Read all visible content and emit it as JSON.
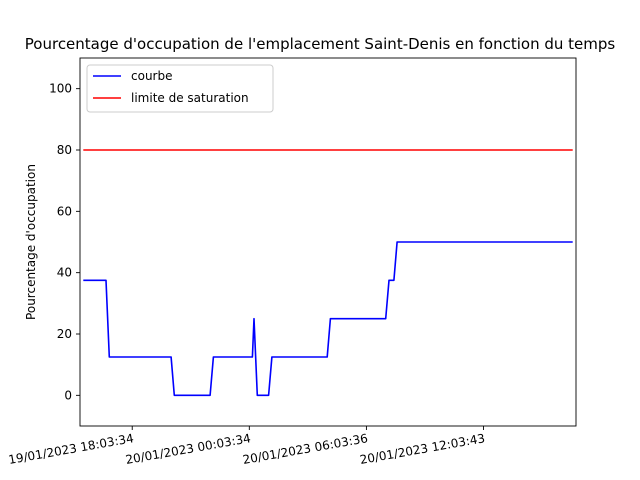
{
  "chart_data": {
    "type": "line",
    "title": "Pourcentage d'occupation de l'emplacement Saint-Denis en fonction du temps",
    "xlabel": "",
    "ylabel": "Pourcentage d'occupation",
    "xlim": [
      "19/01/2023 15:23:00",
      "20/01/2023 16:48:00"
    ],
    "ylim": [
      -10,
      110
    ],
    "grid": false,
    "legend_position": "top-left",
    "x_ticks": [
      "19/01/2023 18:03:34",
      "20/01/2023 00:03:34",
      "20/01/2023 06:03:36",
      "20/01/2023 12:03:43"
    ],
    "y_ticks": [
      0,
      20,
      40,
      60,
      80,
      100
    ],
    "series": [
      {
        "name": "courbe",
        "color": "#0000ff",
        "x": [
          "19/01/2023 15:33:00",
          "19/01/2023 16:43:00",
          "19/01/2023 16:53:00",
          "19/01/2023 20:03:00",
          "19/01/2023 20:13:00",
          "19/01/2023 22:03:00",
          "19/01/2023 22:13:00",
          "20/01/2023 00:13:00",
          "20/01/2023 00:18:00",
          "20/01/2023 00:28:00",
          "20/01/2023 00:38:00",
          "20/01/2023 01:03:00",
          "20/01/2023 01:13:00",
          "20/01/2023 04:03:00",
          "20/01/2023 04:13:00",
          "20/01/2023 07:03:00",
          "20/01/2023 07:13:00",
          "20/01/2023 07:28:00",
          "20/01/2023 07:38:00",
          "20/01/2023 16:38:00"
        ],
        "y": [
          37.5,
          37.5,
          12.5,
          12.5,
          0,
          0,
          12.5,
          12.5,
          25,
          0,
          0,
          0,
          12.5,
          12.5,
          25,
          25,
          37.5,
          37.5,
          50,
          50
        ]
      },
      {
        "name": "limite de saturation",
        "color": "#ff0000",
        "x": [
          "19/01/2023 15:33:00",
          "20/01/2023 16:38:00"
        ],
        "y": [
          80,
          80
        ]
      }
    ]
  }
}
